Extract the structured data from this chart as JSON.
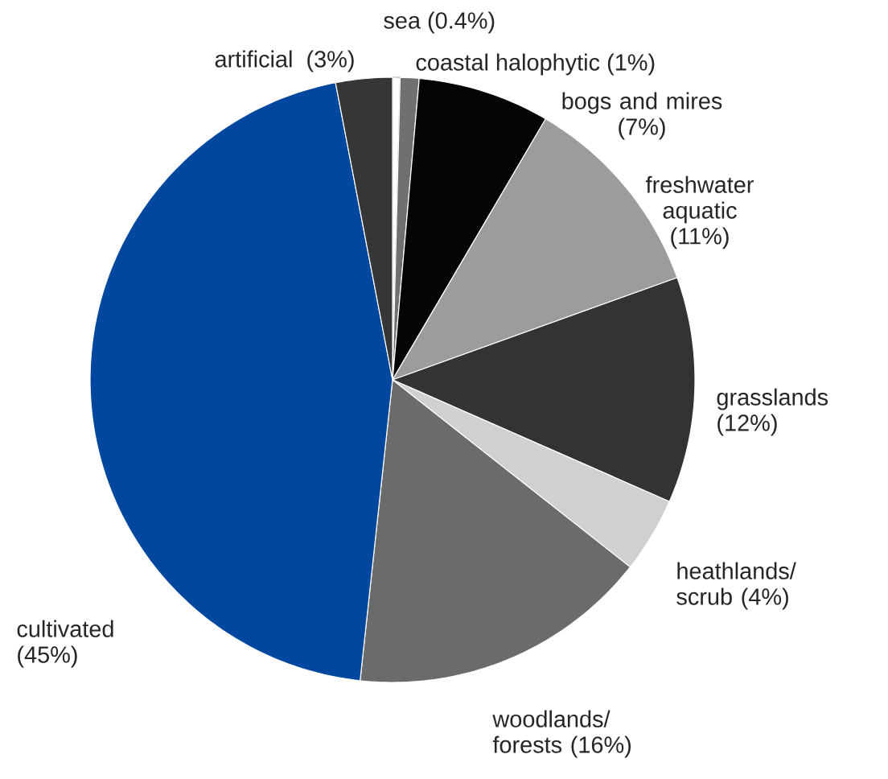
{
  "chart_data": {
    "type": "pie",
    "categories": [
      "sea",
      "coastal halophytic",
      "bogs and mires",
      "freshwater aquatic",
      "grasslands",
      "heathlands/ scrub",
      "woodlands/ forests",
      "cultivated",
      "artificial"
    ],
    "values": [
      0.4,
      1,
      7,
      11,
      12,
      4,
      16,
      45,
      3
    ],
    "value_labels": [
      "(0.4%)",
      "(1%)",
      "(7%)",
      "(11%)",
      "(12%)",
      "(4%)",
      "(16%)",
      "(45%)",
      "(3%)"
    ],
    "colors": [
      "#ffffff",
      "#707070",
      "#050505",
      "#9c9c9c",
      "#333333",
      "#d0d0ce",
      "#6b6b6b",
      "#0047a0",
      "#363636"
    ]
  }
}
